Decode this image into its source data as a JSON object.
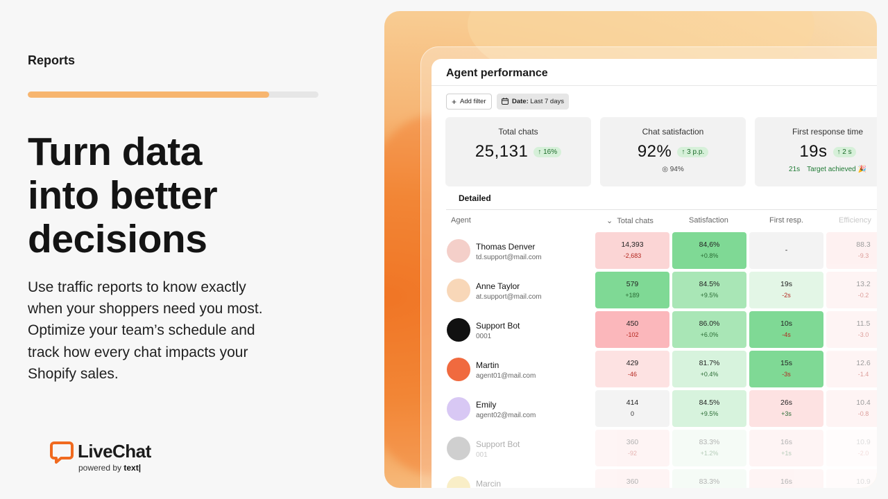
{
  "left": {
    "section_label": "Reports",
    "progress": 0.83,
    "headline": [
      "Turn data",
      "into better",
      "decisions"
    ],
    "body": "Use traffic reports to know exactly when your shoppers need you most. Optimize your team’s schedule and track how every chat impacts your Shopify sales.",
    "logo": {
      "name": "LiveChat",
      "powered_by": "powered by",
      "brand": "text|",
      "accent": "#f06a1f"
    }
  },
  "card": {
    "title": "Agent performance",
    "add_filter": "Add filter",
    "date_label": "Date:",
    "date_value": "Last 7 days",
    "stats": [
      {
        "label": "Total chats",
        "value": "25,131",
        "delta": "↑ 16%"
      },
      {
        "label": "Chat satisfaction",
        "value": "92%",
        "delta": "↑ 3 p.p.",
        "foot": "94%"
      },
      {
        "label": "First response time",
        "value": "19s",
        "delta": "↑ 2 s",
        "foot_resp": "21s",
        "foot_target": "Target achieved 🎉"
      }
    ],
    "tab": "Detailed",
    "columns": [
      "Agent",
      "Total chats",
      "Satisfaction",
      "First resp.",
      "Efficiency"
    ],
    "rows": [
      {
        "name": "Thomas Denver",
        "sub": "td.support@mail.com",
        "chats": "14,393",
        "chats_d": "-2,683",
        "sat": "84,6%",
        "sat_d": "+0.8%",
        "resp": "-",
        "resp_d": "",
        "eff": "88.3",
        "eff_d": "-9.3"
      },
      {
        "name": "Anne Taylor",
        "sub": "at.support@mail.com",
        "chats": "579",
        "chats_d": "+189",
        "sat": "84.5%",
        "sat_d": "+9.5%",
        "resp": "19s",
        "resp_d": "-2s",
        "eff": "13.2",
        "eff_d": "-0.2"
      },
      {
        "name": "Support Bot",
        "sub": "0001",
        "chats": "450",
        "chats_d": "-102",
        "sat": "86.0%",
        "sat_d": "+6.0%",
        "resp": "10s",
        "resp_d": "-4s",
        "eff": "11.5",
        "eff_d": "-3.0"
      },
      {
        "name": "Martin",
        "sub": "agent01@mail.com",
        "chats": "429",
        "chats_d": "-46",
        "sat": "81.7%",
        "sat_d": "+0.4%",
        "resp": "15s",
        "resp_d": "-3s",
        "eff": "12.6",
        "eff_d": "-1.4"
      },
      {
        "name": "Emily",
        "sub": "agent02@mail.com",
        "chats": "414",
        "chats_d": "0",
        "sat": "84.5%",
        "sat_d": "+9.5%",
        "resp": "26s",
        "resp_d": "+3s",
        "eff": "10.4",
        "eff_d": "-0.8"
      },
      {
        "name": "Support Bot",
        "sub": "001",
        "chats": "360",
        "chats_d": "-92",
        "sat": "83.3%",
        "sat_d": "+1.2%",
        "resp": "16s",
        "resp_d": "+1s",
        "eff": "10.9",
        "eff_d": "-2.0"
      },
      {
        "name": "Marcin",
        "sub": "",
        "chats": "360",
        "chats_d": "",
        "sat": "83.3%",
        "sat_d": "",
        "resp": "16s",
        "resp_d": "",
        "eff": "10.9",
        "eff_d": ""
      }
    ]
  }
}
